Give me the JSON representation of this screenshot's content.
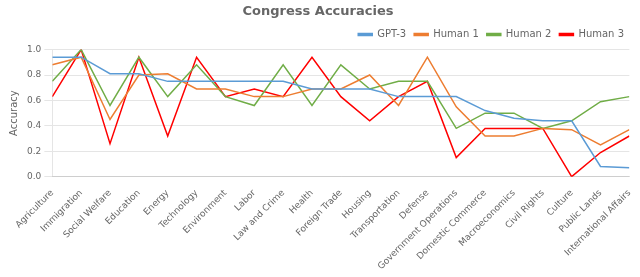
{
  "chart_data": {
    "type": "line",
    "title": "Congress Accuracies",
    "ylabel": "Accuracy",
    "categories": [
      "Agriculture",
      "Immigration",
      "Social Welfare",
      "Education",
      "Energy",
      "Technology",
      "Environment",
      "Labor",
      "Law and Crime",
      "Health",
      "Foreign Trade",
      "Housing",
      "Transportation",
      "Defense",
      "Government Operations",
      "Domestic Commerce",
      "Macroeconomics",
      "Civil Rights",
      "Culture",
      "Public Lands",
      "International Affairs"
    ],
    "series": [
      {
        "name": "GPT-3",
        "color": "#5b9bd5",
        "values": [
          0.94,
          0.94,
          0.81,
          0.81,
          0.75,
          0.75,
          0.75,
          0.75,
          0.75,
          0.69,
          0.69,
          0.69,
          0.63,
          0.63,
          0.63,
          0.52,
          0.46,
          0.44,
          0.44,
          0.08,
          0.07
        ]
      },
      {
        "name": "Human 1",
        "color": "#ed7d31",
        "values": [
          0.88,
          0.94,
          0.45,
          0.8,
          0.81,
          0.69,
          0.69,
          0.63,
          0.63,
          0.69,
          0.69,
          0.8,
          0.56,
          0.94,
          0.55,
          0.32,
          0.32,
          0.38,
          0.37,
          0.25,
          0.37
        ]
      },
      {
        "name": "Human 2",
        "color": "#70ad47",
        "values": [
          0.75,
          1.0,
          0.56,
          0.94,
          0.63,
          0.88,
          0.63,
          0.56,
          0.88,
          0.56,
          0.88,
          0.69,
          0.75,
          0.75,
          0.38,
          0.5,
          0.5,
          0.38,
          0.44,
          0.59,
          0.63
        ]
      },
      {
        "name": "Human 3",
        "color": "#ff0000",
        "values": [
          0.63,
          1.0,
          0.26,
          0.94,
          0.32,
          0.94,
          0.63,
          0.69,
          0.63,
          0.94,
          0.63,
          0.44,
          0.63,
          0.75,
          0.15,
          0.38,
          0.38,
          0.38,
          0.0,
          0.19,
          0.32
        ]
      }
    ],
    "ylim": [
      0.0,
      1.0
    ],
    "yticks": [
      {
        "value": 0.0,
        "label": "0.0"
      },
      0.2,
      0.4,
      0.6,
      0.8,
      {
        "value": 1.0,
        "label": "1.0"
      }
    ],
    "grid": true,
    "legend": "upper right"
  }
}
